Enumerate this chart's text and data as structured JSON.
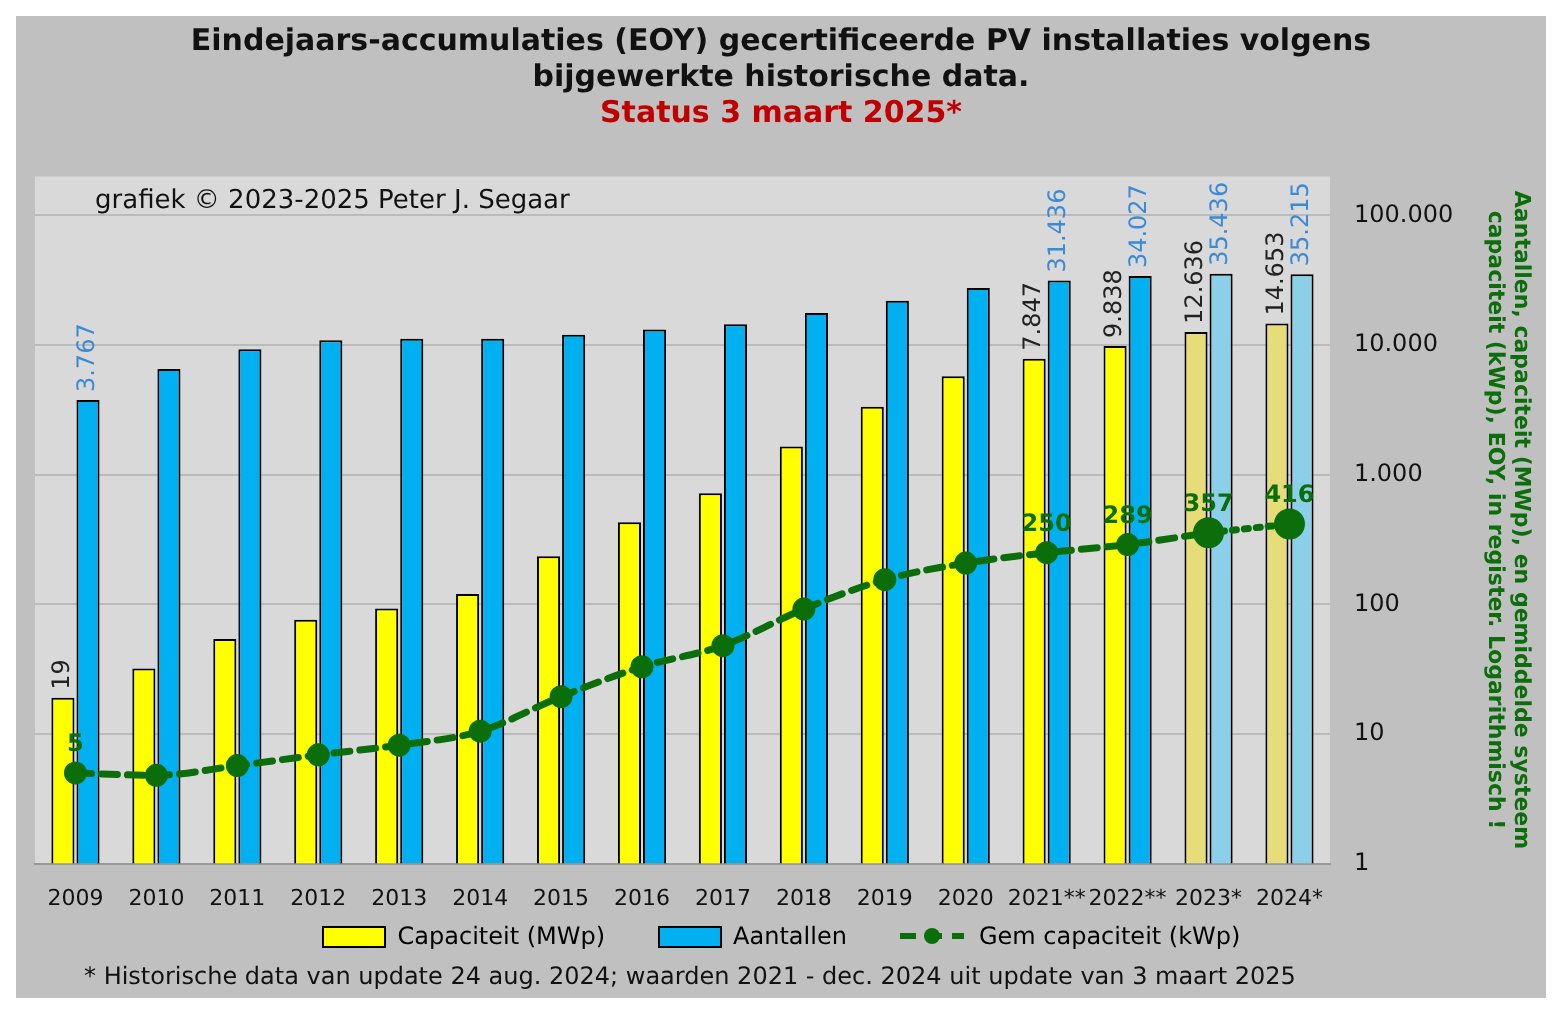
{
  "chart_data": {
    "type": "bar",
    "title": "Eindejaars-accumulaties (EOY) gecertificeerde PV installaties volgens bijgewerkte historische data.",
    "subtitle": "Status 3 maart 2025*",
    "ylabel": "Aantallen, capaciteit (MWp), en gemiddelde systeem capaciteit (kWp), EOY, in register. Logarithmisch !",
    "annotations": [
      "grafiek © 2023-2025 Peter J. Segaar",
      "* Historische data van update 24 aug. 2024; waarden 2021 - dec. 2024 uit update van 3 maart 2025"
    ],
    "categories": [
      "2009",
      "2010",
      "2011",
      "2012",
      "2013",
      "2014",
      "2015",
      "2016",
      "2017",
      "2018",
      "2019",
      "2020",
      "2021**",
      "2022**",
      "2023*",
      "2024*"
    ],
    "series": [
      {
        "name": "Capaciteit (MWp)",
        "color": "#ffff00",
        "colors": [
          "#ffff00",
          "#ffff00",
          "#ffff00",
          "#ffff00",
          "#ffff00",
          "#ffff00",
          "#ffff00",
          "#ffff00",
          "#ffff00",
          "#ffff00",
          "#ffff00",
          "#ffff00",
          "#ffff00",
          "#ffff00",
          "#e6dc78",
          "#e6dc78"
        ],
        "values": [
          19,
          32,
          54,
          76,
          93,
          120,
          235,
          430,
          720,
          1650,
          3340,
          5750,
          7847,
          9838,
          12636,
          14653
        ],
        "value_labels": [
          "19",
          null,
          null,
          null,
          null,
          null,
          null,
          null,
          null,
          null,
          null,
          null,
          "7.847",
          "9.838",
          "12.636",
          "14.653"
        ]
      },
      {
        "name": "Aantallen",
        "color": "#00b0f0",
        "colors": [
          "#00b0f0",
          "#00b0f0",
          "#00b0f0",
          "#00b0f0",
          "#00b0f0",
          "#00b0f0",
          "#00b0f0",
          "#00b0f0",
          "#00b0f0",
          "#00b0f0",
          "#00b0f0",
          "#00b0f0",
          "#00b0f0",
          "#00b0f0",
          "#8ccfe8",
          "#8ccfe8"
        ],
        "values": [
          3767,
          6550,
          9300,
          10900,
          11200,
          11200,
          12000,
          13200,
          14500,
          17700,
          22000,
          27600,
          31436,
          34027,
          35436,
          35215
        ],
        "value_labels": [
          "3.767",
          null,
          null,
          null,
          null,
          null,
          null,
          null,
          null,
          null,
          null,
          null,
          "31.436",
          "34.027",
          "35.436",
          "35.215"
        ]
      },
      {
        "name": "Gem capaciteit (kWp)",
        "type": "line",
        "color": "#0b6e0b",
        "line_style": "dashed",
        "marker": "circle",
        "values": [
          5,
          4.8,
          5.7,
          6.9,
          8.2,
          10.5,
          19.4,
          33,
          48,
          92,
          155,
          208,
          250,
          289,
          357,
          null
        ],
        "value_labels": [
          "5",
          null,
          null,
          null,
          null,
          null,
          null,
          null,
          null,
          null,
          null,
          null,
          "250",
          "289",
          "357",
          null
        ]
      },
      {
        "type": "line",
        "color": "#0b6e0b",
        "line_style": "dotted",
        "marker": "circle",
        "values": [
          null,
          null,
          null,
          null,
          null,
          null,
          null,
          null,
          null,
          null,
          null,
          null,
          null,
          null,
          357,
          416
        ],
        "value_labels": [
          null,
          null,
          null,
          null,
          null,
          null,
          null,
          null,
          null,
          null,
          null,
          null,
          null,
          null,
          null,
          "416"
        ]
      }
    ],
    "log": "y",
    "ylim": [
      1,
      200000
    ],
    "yticks": [
      {
        "value": 1,
        "label": "1"
      },
      {
        "value": 10,
        "label": "10"
      },
      {
        "value": 100,
        "label": "100"
      },
      {
        "value": 1000,
        "label": "1.000"
      },
      {
        "value": 10000,
        "label": "10.000"
      },
      {
        "value": 100000,
        "label": "100.000"
      }
    ],
    "grid": "y",
    "legend": "bottom"
  }
}
